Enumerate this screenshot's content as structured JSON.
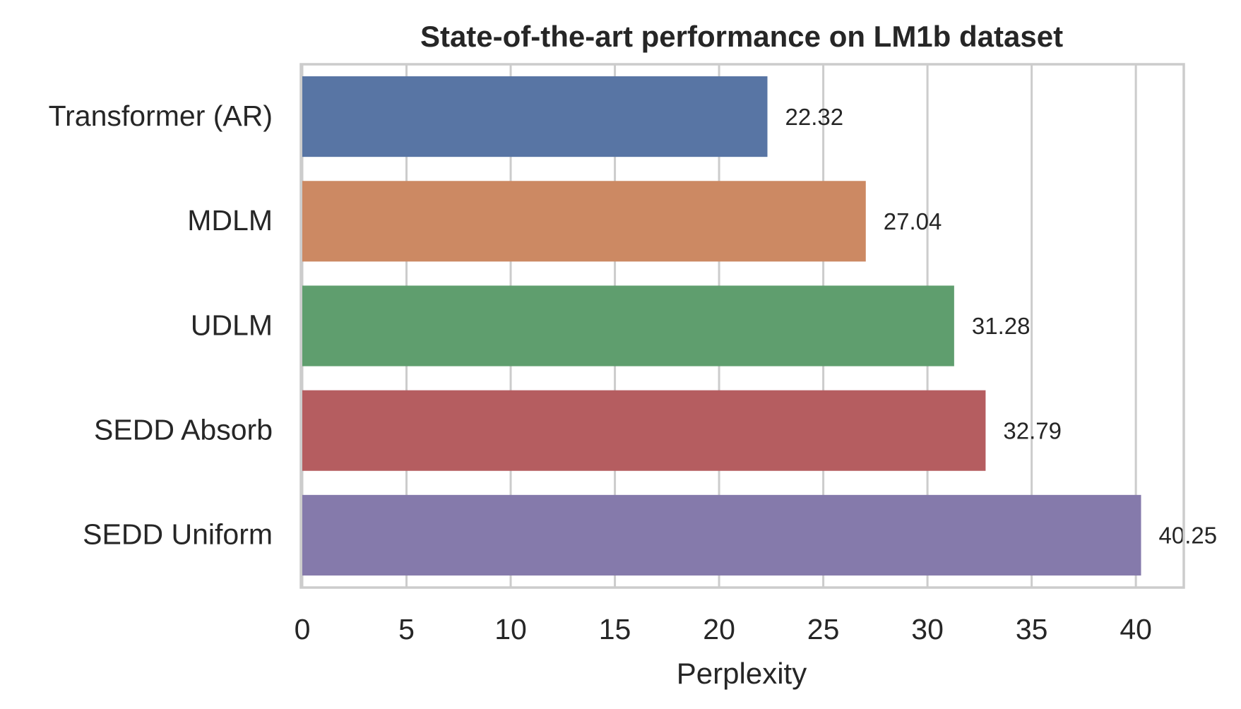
{
  "chart_data": {
    "type": "bar",
    "orientation": "horizontal",
    "title": "State-of-the-art performance on LM1b dataset",
    "xlabel": "Perplexity",
    "ylabel": "",
    "categories": [
      "Transformer (AR)",
      "MDLM",
      "UDLM",
      "SEDD Absorb",
      "SEDD Uniform"
    ],
    "values": [
      22.32,
      27.04,
      31.28,
      32.79,
      40.25
    ],
    "value_labels": [
      "22.32",
      "27.04",
      "31.28",
      "32.79",
      "40.25"
    ],
    "colors": [
      "#5875a4",
      "#cc8963",
      "#5f9e6e",
      "#b55d60",
      "#857aab"
    ],
    "xlim": [
      0,
      42.3
    ],
    "xticks": [
      0,
      5,
      10,
      15,
      20,
      25,
      30,
      35,
      40
    ],
    "xtick_labels": [
      "0",
      "5",
      "10",
      "15",
      "20",
      "25",
      "30",
      "35",
      "40"
    ],
    "grid": "vertical",
    "grid_color": "#cccccc",
    "legend": "none"
  }
}
